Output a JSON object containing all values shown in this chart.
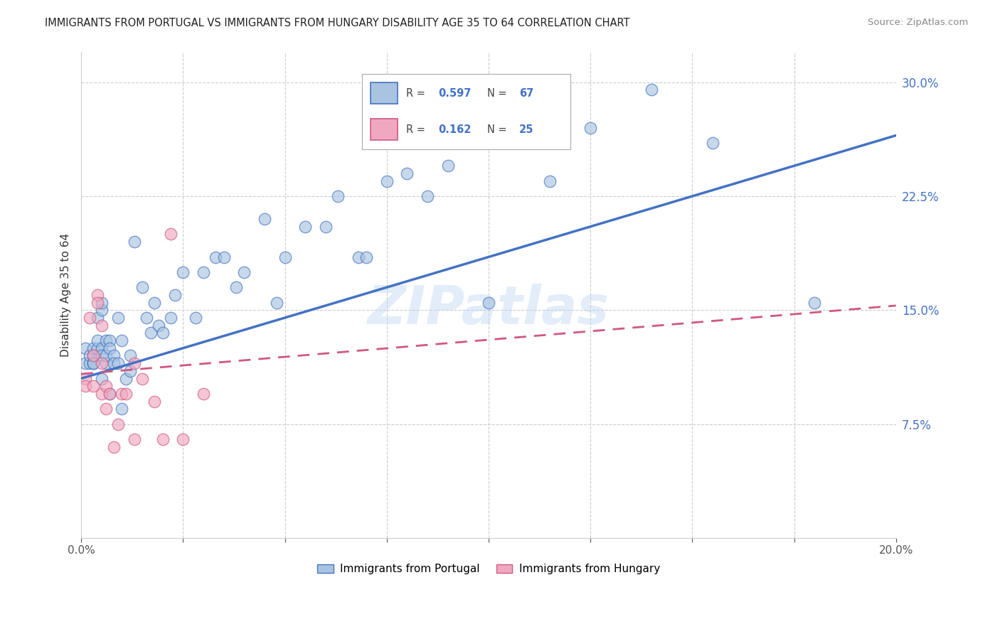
{
  "title": "IMMIGRANTS FROM PORTUGAL VS IMMIGRANTS FROM HUNGARY DISABILITY AGE 35 TO 64 CORRELATION CHART",
  "source": "Source: ZipAtlas.com",
  "ylabel": "Disability Age 35 to 64",
  "xlim": [
    0.0,
    0.2
  ],
  "ylim": [
    0.0,
    0.32
  ],
  "ytick_positions": [
    0.075,
    0.15,
    0.225,
    0.3
  ],
  "ytick_labels": [
    "7.5%",
    "15.0%",
    "22.5%",
    "30.0%"
  ],
  "grid_color": "#cccccc",
  "background_color": "#ffffff",
  "portugal_color": "#a8c4e0",
  "hungary_color": "#f0a8c0",
  "portugal_line_color": "#4472c4",
  "hungary_line_color": "#d05880",
  "portugal_R": 0.597,
  "portugal_N": 67,
  "hungary_R": 0.162,
  "hungary_N": 25,
  "watermark": "ZIPatlas",
  "portugal_x": [
    0.001,
    0.001,
    0.002,
    0.002,
    0.003,
    0.003,
    0.003,
    0.003,
    0.003,
    0.004,
    0.004,
    0.004,
    0.005,
    0.005,
    0.005,
    0.005,
    0.005,
    0.006,
    0.006,
    0.006,
    0.007,
    0.007,
    0.007,
    0.008,
    0.008,
    0.009,
    0.009,
    0.01,
    0.01,
    0.011,
    0.012,
    0.012,
    0.013,
    0.015,
    0.016,
    0.017,
    0.018,
    0.019,
    0.02,
    0.022,
    0.023,
    0.025,
    0.028,
    0.03,
    0.033,
    0.035,
    0.038,
    0.04,
    0.045,
    0.048,
    0.05,
    0.055,
    0.06,
    0.063,
    0.068,
    0.07,
    0.075,
    0.08,
    0.085,
    0.09,
    0.095,
    0.1,
    0.115,
    0.125,
    0.14,
    0.155,
    0.18
  ],
  "portugal_y": [
    0.115,
    0.125,
    0.115,
    0.12,
    0.115,
    0.115,
    0.12,
    0.125,
    0.115,
    0.125,
    0.13,
    0.145,
    0.15,
    0.155,
    0.125,
    0.12,
    0.105,
    0.115,
    0.12,
    0.13,
    0.13,
    0.125,
    0.095,
    0.12,
    0.115,
    0.145,
    0.115,
    0.13,
    0.085,
    0.105,
    0.12,
    0.11,
    0.195,
    0.165,
    0.145,
    0.135,
    0.155,
    0.14,
    0.135,
    0.145,
    0.16,
    0.175,
    0.145,
    0.175,
    0.185,
    0.185,
    0.165,
    0.175,
    0.21,
    0.155,
    0.185,
    0.205,
    0.205,
    0.225,
    0.185,
    0.185,
    0.235,
    0.24,
    0.225,
    0.245,
    0.27,
    0.155,
    0.235,
    0.27,
    0.295,
    0.26,
    0.155
  ],
  "hungary_x": [
    0.001,
    0.001,
    0.002,
    0.003,
    0.003,
    0.004,
    0.004,
    0.005,
    0.005,
    0.005,
    0.006,
    0.006,
    0.007,
    0.008,
    0.009,
    0.01,
    0.011,
    0.013,
    0.013,
    0.015,
    0.018,
    0.02,
    0.022,
    0.025,
    0.03
  ],
  "hungary_y": [
    0.105,
    0.1,
    0.145,
    0.12,
    0.1,
    0.16,
    0.155,
    0.115,
    0.14,
    0.095,
    0.085,
    0.1,
    0.095,
    0.06,
    0.075,
    0.095,
    0.095,
    0.115,
    0.065,
    0.105,
    0.09,
    0.065,
    0.2,
    0.065,
    0.095
  ],
  "portugal_line_x": [
    0.0,
    0.2
  ],
  "portugal_line_y": [
    0.105,
    0.265
  ],
  "hungary_line_x": [
    0.0,
    0.2
  ],
  "hungary_line_y": [
    0.108,
    0.153
  ]
}
